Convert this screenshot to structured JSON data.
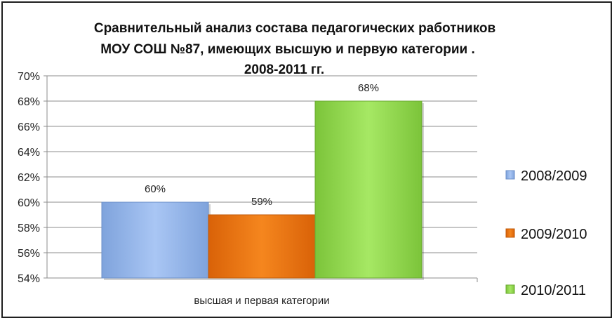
{
  "chart_data": {
    "type": "bar",
    "title_lines": [
      "Сравнительный анализ состава педагогических работников",
      "МОУ СОШ №87, имеющих высшую и первую категории .",
      "2008-2011 гг."
    ],
    "categories": [
      "высшая и первая категории"
    ],
    "series": [
      {
        "name": "2008/2009",
        "values": [
          60
        ],
        "label": "60%",
        "color": "#9bbbee"
      },
      {
        "name": "2009/2010",
        "values": [
          59
        ],
        "label": "59%",
        "color": "#f07a18"
      },
      {
        "name": "2010/2011",
        "values": [
          68
        ],
        "label": "68%",
        "color": "#9ee05a"
      }
    ],
    "ylim": [
      54,
      70
    ],
    "yticks": [
      "54%",
      "56%",
      "58%",
      "60%",
      "62%",
      "64%",
      "66%",
      "68%",
      "70%"
    ],
    "ytick_values": [
      54,
      56,
      58,
      60,
      62,
      64,
      66,
      68,
      70
    ],
    "grid": true,
    "legend_position": "right"
  }
}
